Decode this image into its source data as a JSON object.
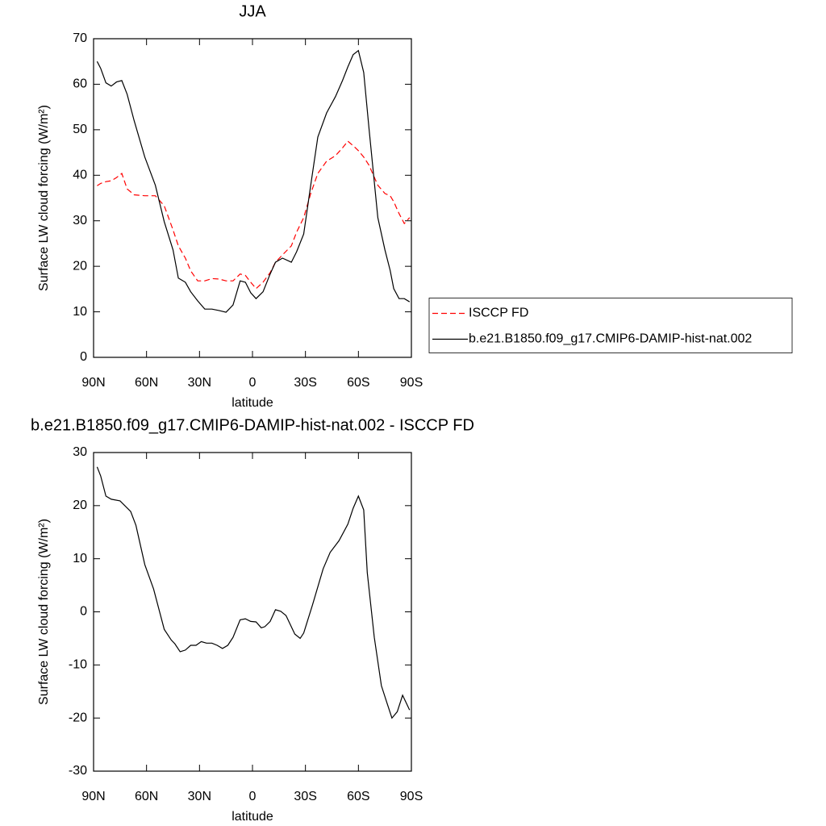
{
  "chart_data": [
    {
      "type": "line",
      "title": "JJA",
      "x_label": "latitude",
      "y_label": "Surface LW cloud forcing (W/m²)",
      "xlim": [
        90,
        -90
      ],
      "xticks": [
        {
          "value": 90,
          "label": "90N"
        },
        {
          "value": 60,
          "label": "60N"
        },
        {
          "value": 30,
          "label": "30N"
        },
        0,
        {
          "value": -30,
          "label": "30S"
        },
        {
          "value": -60,
          "label": "60S"
        },
        {
          "value": -90,
          "label": "90S"
        }
      ],
      "ylim": [
        0,
        70
      ],
      "yticks": [
        0,
        10,
        20,
        30,
        40,
        50,
        60,
        70
      ],
      "legend": "right",
      "x": [
        88,
        86,
        83,
        80,
        77,
        74,
        71,
        67,
        61,
        55,
        50,
        45,
        42,
        38,
        35,
        31,
        27,
        23,
        19,
        15,
        11,
        7,
        4,
        1,
        -2,
        -6,
        -10,
        -13,
        -17,
        -22,
        -25,
        -29,
        -33,
        -37,
        -42,
        -47,
        -51,
        -54,
        -57,
        -60,
        -63,
        -66,
        -71,
        -75,
        -78,
        -80,
        -83,
        -86,
        -89
      ],
      "series": [
        {
          "name": "ISCCP FD",
          "color": "#ff0000",
          "dashed": true,
          "values": [
            37.7,
            38.2,
            38.6,
            38.8,
            39.5,
            40.4,
            37,
            35.7,
            35.5,
            35.5,
            33.3,
            28,
            24.5,
            21.8,
            19,
            16.8,
            16.8,
            17.3,
            17.2,
            16.8,
            16.8,
            18.3,
            18,
            16.5,
            15.1,
            16.5,
            18.6,
            20.9,
            22.5,
            24.5,
            27.5,
            30.7,
            36,
            40.4,
            43.1,
            44.3,
            46,
            47.5,
            46.5,
            45.4,
            44,
            42.2,
            37.8,
            36,
            35.5,
            34.2,
            31.6,
            29.4,
            30.7
          ]
        },
        {
          "name": "b.e21.B1850.f09_g17.CMIP6-DAMIP-hist-nat.002",
          "color": "#000000",
          "dashed": false,
          "values": [
            65,
            63.5,
            60.3,
            59.6,
            60.5,
            60.8,
            57.8,
            52,
            44,
            37.8,
            29.8,
            23.6,
            17.4,
            16.5,
            14.4,
            12.4,
            10.6,
            10.6,
            10.3,
            9.9,
            11.5,
            16.8,
            16.5,
            14.2,
            12.9,
            14.4,
            18.3,
            20.9,
            21.8,
            20.9,
            23.2,
            27.1,
            37.8,
            48.4,
            53.7,
            57.3,
            60.8,
            63.8,
            66.5,
            67.4,
            62.6,
            50.2,
            30.7,
            23.6,
            19.1,
            15.1,
            12.9,
            12.9,
            12.2
          ]
        }
      ]
    },
    {
      "type": "line",
      "title": "b.e21.B1850.f09_g17.CMIP6-DAMIP-hist-nat.002 - ISCCP FD",
      "x_label": "latitude",
      "y_label": "Surface LW cloud forcing (W/m²)",
      "xlim": [
        90,
        -90
      ],
      "xticks": [
        {
          "value": 90,
          "label": "90N"
        },
        {
          "value": 60,
          "label": "60N"
        },
        {
          "value": 30,
          "label": "30N"
        },
        0,
        {
          "value": -30,
          "label": "30S"
        },
        {
          "value": -60,
          "label": "60S"
        },
        {
          "value": -90,
          "label": "90S"
        }
      ],
      "ylim": [
        -30,
        30
      ],
      "yticks": [
        -30,
        -20,
        -10,
        0,
        10,
        20,
        30
      ],
      "x": [
        88,
        86,
        83,
        80,
        75,
        69,
        66,
        61,
        56,
        50,
        46,
        44,
        41,
        38,
        35,
        32,
        29,
        26,
        23,
        20,
        17,
        14,
        11,
        7,
        4,
        1,
        -2,
        -5,
        -7,
        -10,
        -13,
        -16,
        -19,
        -24,
        -27,
        -29,
        -34,
        -40,
        -44,
        -49,
        -54,
        -57,
        -60,
        -63,
        -65,
        -69,
        -73,
        -76,
        -79,
        -82,
        -85,
        -89
      ],
      "series": [
        {
          "color": "#000000",
          "dashed": false,
          "values": [
            27.3,
            25.6,
            21.8,
            21.2,
            20.9,
            18.9,
            16.3,
            8.9,
            4.3,
            -3.3,
            -5.3,
            -6,
            -7.5,
            -7.2,
            -6.3,
            -6.3,
            -5.6,
            -5.9,
            -5.9,
            -6.3,
            -6.9,
            -6.3,
            -4.8,
            -1.5,
            -1.3,
            -1.8,
            -1.9,
            -3,
            -2.8,
            -1.8,
            0.4,
            0.1,
            -0.7,
            -4.2,
            -5,
            -4,
            1.3,
            8.1,
            11.2,
            13.4,
            16.5,
            19.5,
            21.8,
            19.2,
            7.4,
            -4.8,
            -13.9,
            -17,
            -20,
            -18.8,
            -15.7,
            -18.5
          ]
        }
      ]
    }
  ]
}
